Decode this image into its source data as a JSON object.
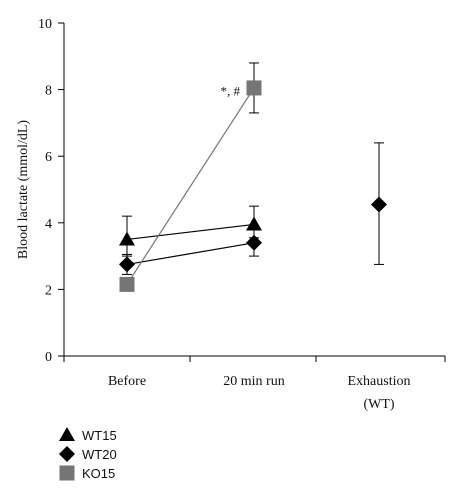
{
  "chart_data": {
    "type": "scatter",
    "ylabel": "Blood lactate (mmol/dL)",
    "xlabel": "",
    "ylim": [
      0,
      10
    ],
    "yticks": [
      0,
      2,
      4,
      6,
      8,
      10
    ],
    "grid": false,
    "categories": [
      {
        "lines": [
          "Before"
        ]
      },
      {
        "lines": [
          "20 min  run"
        ]
      },
      {
        "lines": [
          "Exhaustion",
          "(WT)"
        ]
      }
    ],
    "legend_position": "bottom-left",
    "series": [
      {
        "name": "WT15",
        "marker": "triangle",
        "color": "#000000",
        "line_color": "#000000",
        "points": [
          {
            "category": 0,
            "y": 3.5,
            "err_low": 0.5,
            "err_high": 0.7
          },
          {
            "category": 1,
            "y": 3.95,
            "err_low": 0.4,
            "err_high": 0.55
          }
        ]
      },
      {
        "name": "WT20",
        "marker": "diamond",
        "color": "#000000",
        "line_color": "#000000",
        "points": [
          {
            "category": 0,
            "y": 2.75,
            "err_low": 0.3,
            "err_high": 0.3
          },
          {
            "category": 1,
            "y": 3.4,
            "err_low": 0.4,
            "err_high": 0.4
          },
          {
            "category": 2,
            "y": 4.55,
            "err_low": 1.8,
            "err_high": 1.85,
            "connected": false
          }
        ]
      },
      {
        "name": "KO15",
        "marker": "square",
        "color": "#757575",
        "line_color": "#757575",
        "points": [
          {
            "category": 0,
            "y": 2.15,
            "err_low": 0.2,
            "err_high": 0.2
          },
          {
            "category": 1,
            "y": 8.05,
            "err_low": 0.75,
            "err_high": 0.75
          }
        ]
      }
    ],
    "annotations": [
      {
        "text": "*, #",
        "category": 1,
        "y": 7.95
      }
    ]
  }
}
